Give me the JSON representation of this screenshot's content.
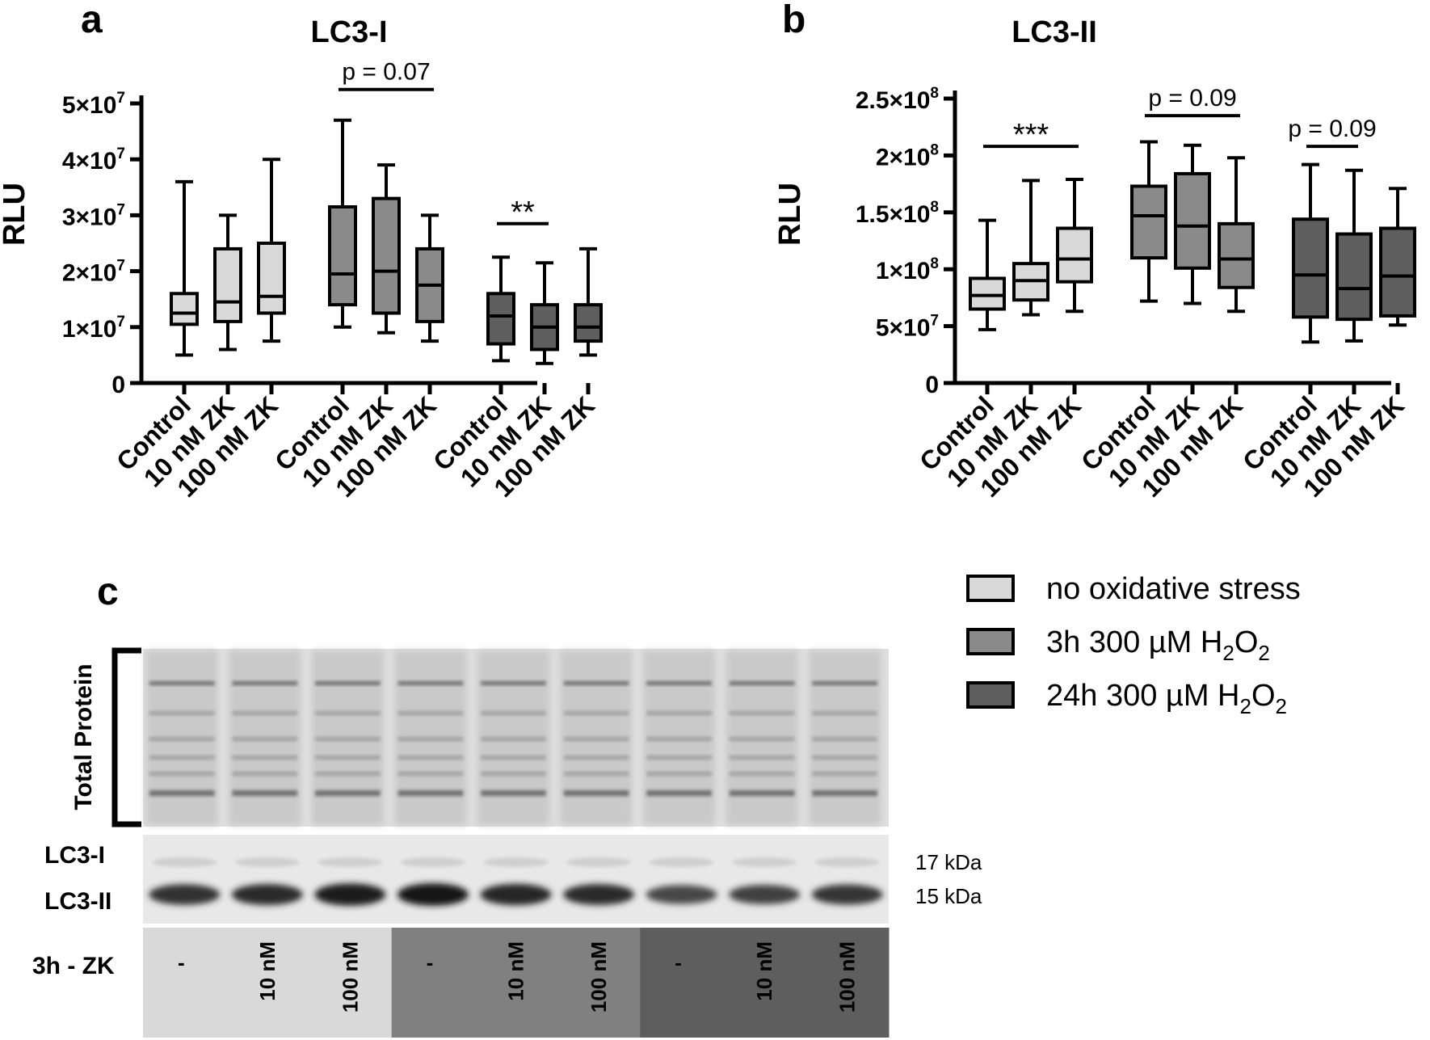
{
  "chart_data": [
    {
      "panel": "a",
      "type": "box",
      "title": "LC3-I",
      "ylabel": "RLU",
      "ylim": [
        0,
        50000000
      ],
      "yticks": [
        {
          "value": 0,
          "base": "0",
          "exp": ""
        },
        {
          "value": 10000000,
          "base": "1×10",
          "exp": "7"
        },
        {
          "value": 20000000,
          "base": "2×10",
          "exp": "7"
        },
        {
          "value": 30000000,
          "base": "3×10",
          "exp": "7"
        },
        {
          "value": 40000000,
          "base": "4×10",
          "exp": "7"
        },
        {
          "value": 50000000,
          "base": "5×10",
          "exp": "7"
        }
      ],
      "groups": [
        {
          "condition": "no oxidative stress",
          "boxes": [
            {
              "label": "Control",
              "min": 5000000,
              "q1": 10500000,
              "median": 12500000,
              "q3": 16000000,
              "max": 36000000
            },
            {
              "label": "10 nM ZK",
              "min": 6000000,
              "q1": 11000000,
              "median": 14500000,
              "q3": 24000000,
              "max": 30000000
            },
            {
              "label": "100 nM ZK",
              "min": 7500000,
              "q1": 12500000,
              "median": 15500000,
              "q3": 25000000,
              "max": 40000000
            }
          ]
        },
        {
          "condition": "3h 300 µM H2O2",
          "boxes": [
            {
              "label": "Control",
              "min": 10000000,
              "q1": 14000000,
              "median": 19500000,
              "q3": 31500000,
              "max": 47000000
            },
            {
              "label": "10 nM ZK",
              "min": 9000000,
              "q1": 12500000,
              "median": 20000000,
              "q3": 33000000,
              "max": 39000000
            },
            {
              "label": "100 nM ZK",
              "min": 7500000,
              "q1": 11000000,
              "median": 17500000,
              "q3": 24000000,
              "max": 30000000
            }
          ]
        },
        {
          "condition": "24h 300 µM H2O2",
          "boxes": [
            {
              "label": "Control",
              "min": 4000000,
              "q1": 7000000,
              "median": 12000000,
              "q3": 16000000,
              "max": 22500000
            },
            {
              "label": "10 nM ZK",
              "min": 3500000,
              "q1": 6000000,
              "median": 10000000,
              "q3": 14000000,
              "max": 21500000
            },
            {
              "label": "100 nM ZK",
              "min": 5000000,
              "q1": 7500000,
              "median": 10000000,
              "q3": 14000000,
              "max": 24000000
            }
          ]
        }
      ],
      "annotations": [
        {
          "text": "p = 0.07",
          "group": 1,
          "from": 0,
          "to": 2,
          "y": 52500000
        },
        {
          "text": "**",
          "group": 2,
          "from": 0,
          "to": 1,
          "y": 28500000
        }
      ]
    },
    {
      "panel": "b",
      "type": "box",
      "title": "LC3-II",
      "ylabel": "RLU",
      "ylim": [
        0,
        250000000
      ],
      "yticks": [
        {
          "value": 0,
          "base": "0",
          "exp": ""
        },
        {
          "value": 50000000,
          "base": "5×10",
          "exp": "7"
        },
        {
          "value": 100000000,
          "base": "1×10",
          "exp": "8"
        },
        {
          "value": 150000000,
          "base": "1.5×10",
          "exp": "8"
        },
        {
          "value": 200000000,
          "base": "2×10",
          "exp": "8"
        },
        {
          "value": 250000000,
          "base": "2.5×10",
          "exp": "8"
        }
      ],
      "groups": [
        {
          "condition": "no oxidative stress",
          "boxes": [
            {
              "label": "Control",
              "min": 47000000,
              "q1": 65000000,
              "median": 77000000,
              "q3": 92000000,
              "max": 143000000
            },
            {
              "label": "10 nM ZK",
              "min": 60000000,
              "q1": 73000000,
              "median": 90000000,
              "q3": 105000000,
              "max": 178000000
            },
            {
              "label": "100 nM ZK",
              "min": 63000000,
              "q1": 89000000,
              "median": 109000000,
              "q3": 136000000,
              "max": 179000000
            }
          ]
        },
        {
          "condition": "3h 300 µM H2O2",
          "boxes": [
            {
              "label": "Control",
              "min": 72000000,
              "q1": 110000000,
              "median": 147000000,
              "q3": 173000000,
              "max": 212000000
            },
            {
              "label": "10 nM ZK",
              "min": 70000000,
              "q1": 101000000,
              "median": 138000000,
              "q3": 184000000,
              "max": 209000000
            },
            {
              "label": "100 nM ZK",
              "min": 63000000,
              "q1": 84000000,
              "median": 109000000,
              "q3": 140000000,
              "max": 198000000
            }
          ]
        },
        {
          "condition": "24h 300 µM H2O2",
          "boxes": [
            {
              "label": "Control",
              "min": 36000000,
              "q1": 58000000,
              "median": 95000000,
              "q3": 144000000,
              "max": 192000000
            },
            {
              "label": "10 nM ZK",
              "min": 37000000,
              "q1": 56000000,
              "median": 83000000,
              "q3": 131000000,
              "max": 187000000
            },
            {
              "label": "100 nM ZK",
              "min": 51000000,
              "q1": 59000000,
              "median": 94000000,
              "q3": 136000000,
              "max": 171000000
            }
          ]
        }
      ],
      "annotations": [
        {
          "text": "***",
          "group": 0,
          "from": 0,
          "to": 2,
          "y": 208000000
        },
        {
          "text": "p = 0.09",
          "group": 1,
          "from": 0,
          "to": 2,
          "y": 235000000
        },
        {
          "text": "p = 0.09",
          "group": 2,
          "from": 0,
          "to": 1,
          "y": 208000000
        }
      ]
    }
  ],
  "legend": {
    "placement": "right",
    "items": [
      {
        "text": "no oxidative stress",
        "sub_parts": [],
        "color": "#d9d9d9"
      },
      {
        "text": "3h 300 µM H",
        "sub_parts": [
          "2",
          "O",
          "2"
        ],
        "color": "#8a8a8a"
      },
      {
        "text": "24h 300 µM H",
        "sub_parts": [
          "2",
          "O",
          "2"
        ],
        "color": "#5e5e5e"
      }
    ]
  },
  "colors": {
    "no_stress": "#d9d9d9",
    "h2o2_3h": "#8a8a8a",
    "h2o2_24h": "#5e5e5e"
  },
  "blot": {
    "panel": "c",
    "total_protein_label": "Total Protein",
    "lc3i_label": "LC3-I",
    "lc3ii_label": "LC3-II",
    "kda_17": "17 kDa",
    "kda_15": "15 kDa",
    "treatment_label": "3h - ZK",
    "lanes": [
      "-",
      "10 nM",
      "100 nM",
      "-",
      "10 nM",
      "100 nM",
      "-",
      "10 nM",
      "100 nM"
    ],
    "lane_band_intensity": [
      0.75,
      0.8,
      0.95,
      1.0,
      0.85,
      0.8,
      0.55,
      0.6,
      0.7
    ],
    "lane_colors": [
      "#d9d9d9",
      "#808080",
      "#5e5e5e"
    ]
  }
}
